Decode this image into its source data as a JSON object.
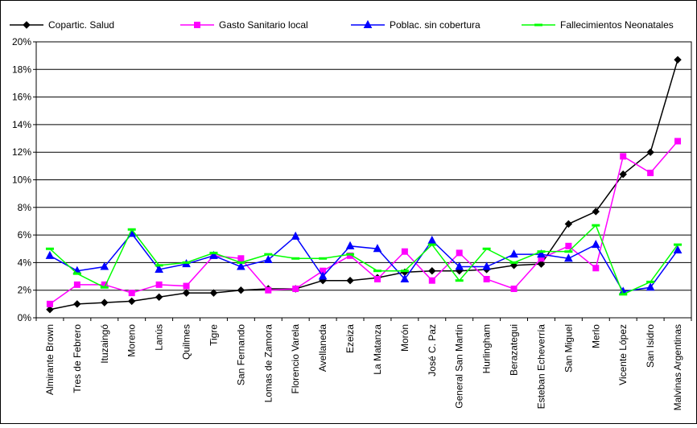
{
  "chart_data": {
    "type": "line",
    "title": "",
    "xlabel": "",
    "ylabel": "",
    "ylim": [
      0,
      20
    ],
    "y_ticks": [
      "0%",
      "2%",
      "4%",
      "6%",
      "8%",
      "10%",
      "12%",
      "14%",
      "16%",
      "18%",
      "20%"
    ],
    "grid": "horizontal",
    "legend_position": "top",
    "categories": [
      "Almirante Brown",
      "Tres de Febrero",
      "Ituzaingó",
      "Moreno",
      "Lanús",
      "Quilmes",
      "Tigre",
      "San Fernando",
      "Lomas de Zamora",
      "Florencio Varela",
      "Avellaneda",
      "Ezeiza",
      "La Matanza",
      "Morón",
      "José C. Paz",
      "General San Martín",
      "Hurlingham",
      "Berazategui",
      "Esteban Echeverría",
      "San Miguel",
      "Merlo",
      "Vicente López",
      "San Isidro",
      "Malvinas Argentinas"
    ],
    "series": [
      {
        "name": "Copartic. Salud",
        "color": "#000000",
        "marker": "diamond",
        "values": [
          0.6,
          1.0,
          1.1,
          1.2,
          1.5,
          1.8,
          1.8,
          2.0,
          2.1,
          2.1,
          2.7,
          2.7,
          2.9,
          3.3,
          3.4,
          3.4,
          3.5,
          3.8,
          3.9,
          6.8,
          7.7,
          10.4,
          12.0,
          18.7
        ]
      },
      {
        "name": "Gasto Sanitario local",
        "color": "#ff00ff",
        "marker": "square",
        "values": [
          1.0,
          2.4,
          2.4,
          1.8,
          2.4,
          2.3,
          4.5,
          4.3,
          2.0,
          2.1,
          3.4,
          4.5,
          2.8,
          4.8,
          2.7,
          4.7,
          2.8,
          2.1,
          4.3,
          5.2,
          3.6,
          11.7,
          10.5,
          12.8
        ]
      },
      {
        "name": "Poblac. sin cobertura",
        "color": "#0000ff",
        "marker": "triangle",
        "values": [
          4.5,
          3.4,
          3.7,
          6.1,
          3.5,
          3.9,
          4.5,
          3.7,
          4.2,
          5.9,
          3.0,
          5.2,
          5.0,
          2.8,
          5.6,
          3.7,
          3.7,
          4.6,
          4.6,
          4.3,
          5.3,
          1.9,
          2.2,
          4.9
        ]
      },
      {
        "name": "Fallecimientos Neonatales",
        "color": "#00ff00",
        "marker": "dash",
        "values": [
          5.0,
          3.2,
          2.2,
          6.4,
          3.8,
          4.0,
          4.7,
          4.0,
          4.6,
          4.3,
          4.3,
          4.6,
          3.4,
          3.4,
          5.3,
          2.7,
          5.0,
          4.0,
          4.8,
          4.8,
          6.7,
          1.7,
          2.6,
          5.3
        ]
      }
    ]
  }
}
